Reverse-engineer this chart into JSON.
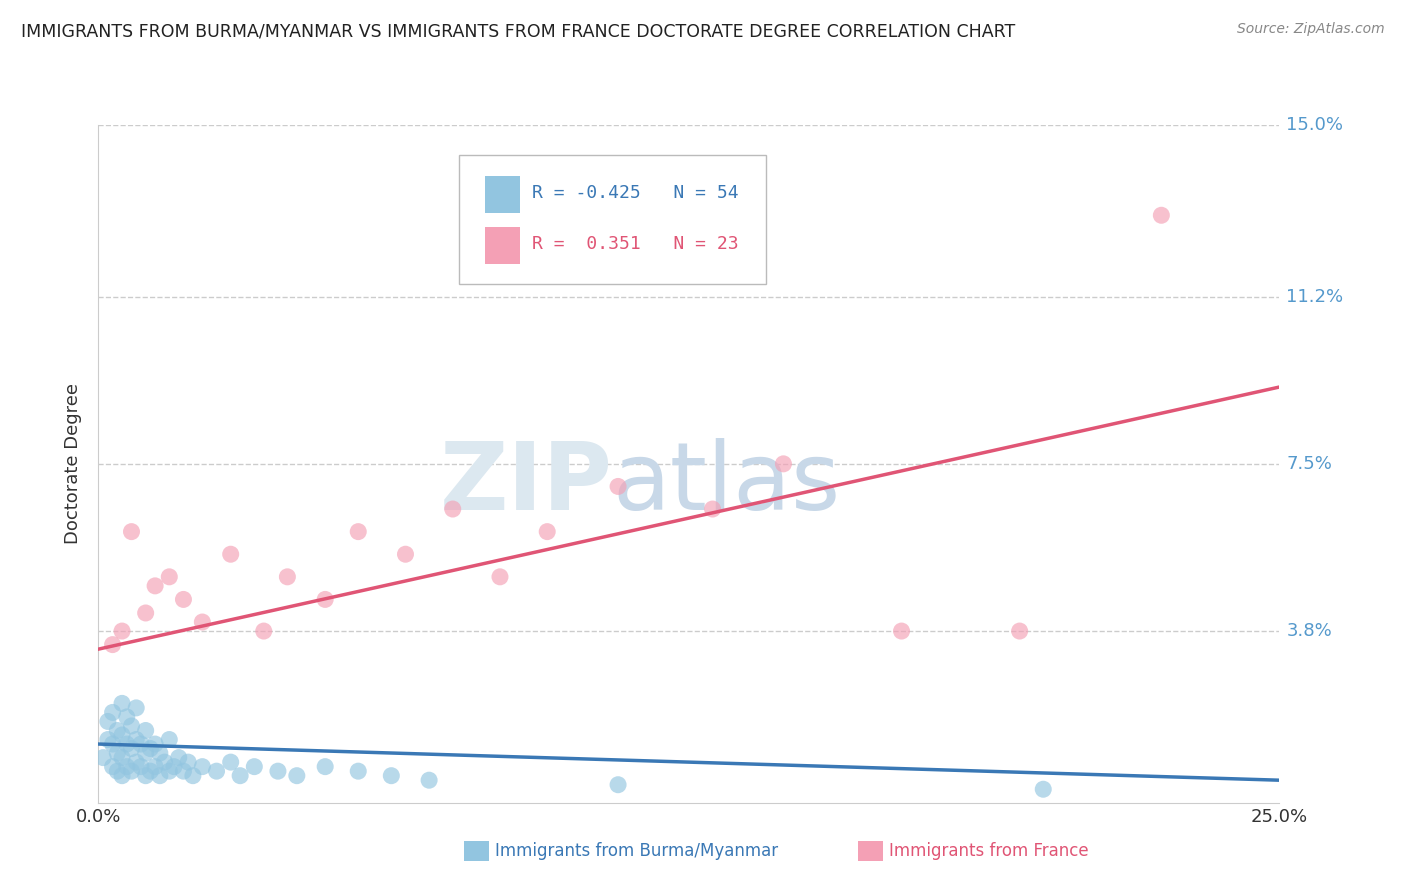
{
  "title": "IMMIGRANTS FROM BURMA/MYANMAR VS IMMIGRANTS FROM FRANCE DOCTORATE DEGREE CORRELATION CHART",
  "source": "Source: ZipAtlas.com",
  "ylabel": "Doctorate Degree",
  "xlim": [
    0.0,
    0.25
  ],
  "ylim": [
    0.0,
    0.15
  ],
  "yticks": [
    0.038,
    0.075,
    0.112,
    0.15
  ],
  "ytick_labels": [
    "3.8%",
    "7.5%",
    "11.2%",
    "15.0%"
  ],
  "xticks": [
    0.0,
    0.25
  ],
  "xtick_labels": [
    "0.0%",
    "25.0%"
  ],
  "R_blue": -0.425,
  "N_blue": 54,
  "R_pink": 0.351,
  "N_pink": 23,
  "blue_color": "#92C5E0",
  "pink_color": "#F4A0B5",
  "blue_line_color": "#3A78B5",
  "pink_line_color": "#E05575",
  "blue_line_x0": 0.0,
  "blue_line_y0": 0.013,
  "blue_line_x1": 0.25,
  "blue_line_y1": 0.005,
  "pink_line_x0": 0.0,
  "pink_line_y0": 0.034,
  "pink_line_x1": 0.25,
  "pink_line_y1": 0.092,
  "blue_scatter_x": [
    0.001,
    0.002,
    0.002,
    0.003,
    0.003,
    0.003,
    0.004,
    0.004,
    0.004,
    0.005,
    0.005,
    0.005,
    0.005,
    0.006,
    0.006,
    0.006,
    0.007,
    0.007,
    0.007,
    0.008,
    0.008,
    0.008,
    0.009,
    0.009,
    0.01,
    0.01,
    0.01,
    0.011,
    0.011,
    0.012,
    0.012,
    0.013,
    0.013,
    0.014,
    0.015,
    0.015,
    0.016,
    0.017,
    0.018,
    0.019,
    0.02,
    0.022,
    0.025,
    0.028,
    0.03,
    0.033,
    0.038,
    0.042,
    0.048,
    0.055,
    0.062,
    0.07,
    0.11,
    0.2
  ],
  "blue_scatter_y": [
    0.01,
    0.014,
    0.018,
    0.008,
    0.013,
    0.02,
    0.007,
    0.011,
    0.016,
    0.006,
    0.01,
    0.015,
    0.022,
    0.008,
    0.013,
    0.019,
    0.007,
    0.012,
    0.017,
    0.009,
    0.014,
    0.021,
    0.008,
    0.013,
    0.006,
    0.011,
    0.016,
    0.007,
    0.012,
    0.008,
    0.013,
    0.006,
    0.011,
    0.009,
    0.007,
    0.014,
    0.008,
    0.01,
    0.007,
    0.009,
    0.006,
    0.008,
    0.007,
    0.009,
    0.006,
    0.008,
    0.007,
    0.006,
    0.008,
    0.007,
    0.006,
    0.005,
    0.004,
    0.003
  ],
  "pink_scatter_x": [
    0.003,
    0.005,
    0.007,
    0.01,
    0.012,
    0.015,
    0.018,
    0.022,
    0.028,
    0.035,
    0.04,
    0.048,
    0.055,
    0.065,
    0.075,
    0.085,
    0.095,
    0.11,
    0.13,
    0.145,
    0.17,
    0.195,
    0.225
  ],
  "pink_scatter_y": [
    0.035,
    0.038,
    0.06,
    0.042,
    0.048,
    0.05,
    0.045,
    0.04,
    0.055,
    0.038,
    0.05,
    0.045,
    0.06,
    0.055,
    0.065,
    0.05,
    0.06,
    0.07,
    0.065,
    0.075,
    0.038,
    0.038,
    0.13
  ]
}
